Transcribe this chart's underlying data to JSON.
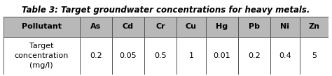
{
  "title": "Table 3: Target groundwater concentrations for heavy metals.",
  "columns": [
    "Pollutant",
    "As",
    "Cd",
    "Cr",
    "Cu",
    "Hg",
    "Pb",
    "Ni",
    "Zn"
  ],
  "row_label": "Target\nconcentration\n(mg/l)",
  "values": [
    "0.2",
    "0.05",
    "0.5",
    "1",
    "0.01",
    "0.2",
    "0.4",
    "5"
  ],
  "header_bg": "#b8b8b8",
  "header_text": "#000000",
  "cell_bg": "#ffffff",
  "border_color": "#555555",
  "title_color": "#000000",
  "title_fontsize": 8.5,
  "header_fontsize": 8.0,
  "cell_fontsize": 8.0,
  "col_widths": [
    1.7,
    0.72,
    0.72,
    0.72,
    0.65,
    0.72,
    0.72,
    0.65,
    0.65
  ]
}
